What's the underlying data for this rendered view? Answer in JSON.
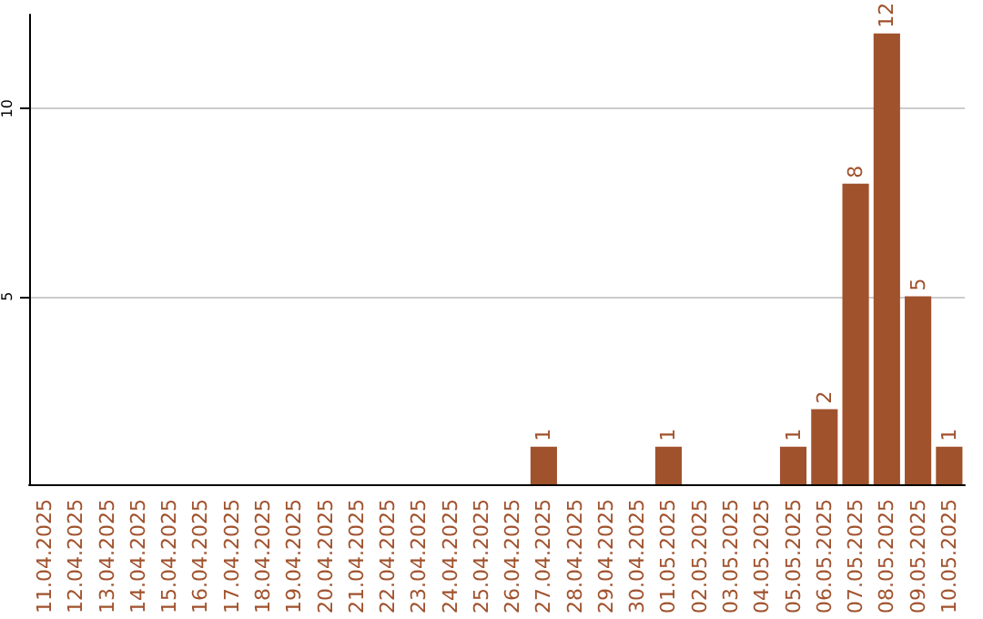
{
  "chart_data": {
    "type": "bar",
    "categories": [
      "11.04.2025",
      "12.04.2025",
      "13.04.2025",
      "14.04.2025",
      "15.04.2025",
      "16.04.2025",
      "17.04.2025",
      "18.04.2025",
      "19.04.2025",
      "20.04.2025",
      "21.04.2025",
      "22.04.2025",
      "23.04.2025",
      "24.04.2025",
      "25.04.2025",
      "26.04.2025",
      "27.04.2025",
      "28.04.2025",
      "29.04.2025",
      "30.04.2025",
      "01.05.2025",
      "02.05.2025",
      "03.05.2025",
      "04.05.2025",
      "05.05.2025",
      "06.05.2025",
      "07.05.2025",
      "08.05.2025",
      "09.05.2025",
      "10.05.2025"
    ],
    "values": [
      0,
      0,
      0,
      0,
      0,
      0,
      0,
      0,
      0,
      0,
      0,
      0,
      0,
      0,
      0,
      0,
      1,
      0,
      0,
      0,
      1,
      0,
      0,
      0,
      1,
      2,
      8,
      12,
      5,
      1
    ],
    "value_labels": [
      null,
      null,
      null,
      null,
      null,
      null,
      null,
      null,
      null,
      null,
      null,
      null,
      null,
      null,
      null,
      null,
      "1",
      null,
      null,
      null,
      "1",
      null,
      null,
      null,
      "1",
      "2",
      "8",
      "12",
      "5",
      "1"
    ],
    "color": "#a0522d",
    "ylim": [
      0,
      12.5
    ],
    "yticks": [
      5,
      10
    ],
    "grid": "y"
  }
}
